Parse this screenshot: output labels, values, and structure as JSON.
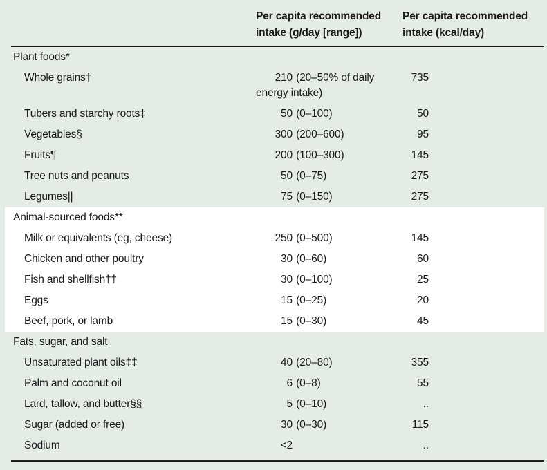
{
  "colors": {
    "background": "#e4ece5",
    "highlight_row_background": "#ffffff",
    "rule": "#1c1c1c",
    "text": "#1a1a1a"
  },
  "header": {
    "food_col": "",
    "gday_col": "Per capita recommended intake (g/day [range])",
    "kcal_col": "Per capita recommended intake (kcal/day)"
  },
  "sections": [
    {
      "title": "Plant foods*",
      "highlight": false,
      "rows": [
        {
          "label": "Whole grains†",
          "amount": "210",
          "range": "(20–50% of daily energy intake)",
          "kcal": "735"
        },
        {
          "label": "Tubers and starchy roots‡",
          "amount": "50",
          "range": "(0–100)",
          "kcal": "50"
        },
        {
          "label": "Vegetables§",
          "amount": "300",
          "range": "(200–600)",
          "kcal": "95"
        },
        {
          "label": "Fruits¶",
          "amount": "200",
          "range": "(100–300)",
          "kcal": "145"
        },
        {
          "label": "Tree nuts and peanuts",
          "amount": "50",
          "range": "(0–75)",
          "kcal": "275"
        },
        {
          "label": "Legumes||",
          "amount": "75",
          "range": "(0–150)",
          "kcal": "275"
        }
      ]
    },
    {
      "title": "Animal-sourced foods**",
      "highlight": true,
      "rows": [
        {
          "label": "Milk or equivalents (eg, cheese)",
          "amount": "250",
          "range": "(0–500)",
          "kcal": "145"
        },
        {
          "label": "Chicken and other poultry",
          "amount": "30",
          "range": "(0–60)",
          "kcal": "60"
        },
        {
          "label": "Fish and shellfish††",
          "amount": "30",
          "range": "(0–100)",
          "kcal": "25"
        },
        {
          "label": "Eggs",
          "amount": "15",
          "range": "(0–25)",
          "kcal": "20"
        },
        {
          "label": "Beef, pork, or lamb",
          "amount": "15",
          "range": "(0–30)",
          "kcal": "45"
        }
      ]
    },
    {
      "title": "Fats, sugar, and salt",
      "highlight": false,
      "rows": [
        {
          "label": "Unsaturated plant oils‡‡",
          "amount": "40",
          "range": "(20–80)",
          "kcal": "355"
        },
        {
          "label": "Palm and coconut oil",
          "amount": "6",
          "range": "(0–8)",
          "kcal": "55"
        },
        {
          "label": "Lard, tallow, and butter§§",
          "amount": "5",
          "range": "(0–10)",
          "kcal": ".."
        },
        {
          "label": "Sugar (added or free)",
          "amount": "30",
          "range": "(0–30)",
          "kcal": "115"
        },
        {
          "label": "Sodium",
          "amount": "<2",
          "range": "",
          "kcal": ".."
        }
      ]
    }
  ]
}
